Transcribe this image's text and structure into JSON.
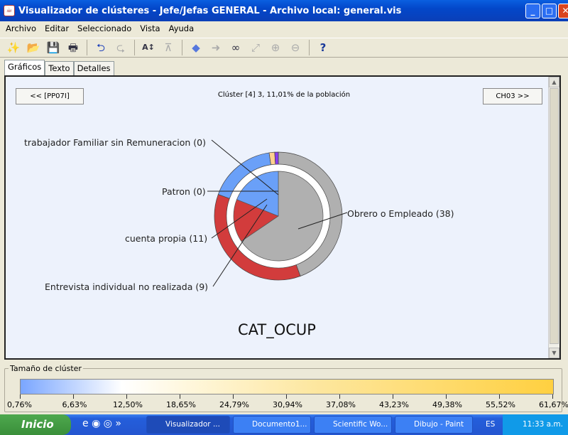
{
  "window": {
    "title": "Visualizador de clústeres - Jefe/Jefas GENERAL - Archivo local: general.vis"
  },
  "menu": [
    "Archivo",
    "Editar",
    "Seleccionado",
    "Vista",
    "Ayuda"
  ],
  "toolbar": [
    "new-icon",
    "open-icon",
    "save-icon",
    "print-icon",
    "redo-arrow-icon",
    "undo-arrow-icon",
    "sort-icon",
    "collapse-icon",
    "back-icon",
    "forward-icon",
    "binoculars-icon",
    "resize-icon",
    "zoom-in-icon",
    "zoom-out-icon",
    "help-icon"
  ],
  "tabs": [
    "Gráficos",
    "Texto",
    "Detalles"
  ],
  "panel": {
    "prev_label": "<< [PP07I]",
    "next_label": "CH03 >>",
    "cluster_info": "Clúster [4] 3, 11,01% de la población"
  },
  "chart_data": {
    "type": "pie",
    "title": "CAT_OCUP",
    "categories": [
      "Obrero o Empleado",
      "Entrevista individual no realizada",
      "cuenta propia",
      "Patron",
      "trabajador Familiar sin Remuneracion"
    ],
    "values": [
      38,
      9,
      11,
      0,
      0
    ],
    "labels": [
      "Obrero o Empleado (38)",
      "Entrevista individual no realizada (9)",
      "cuenta propia (11)",
      "Patron (0)",
      "trabajador Familiar sin Remuneracion (0)"
    ],
    "colors": [
      "#b0b0b0",
      "#d23c3c",
      "#6aa0f8",
      "#ffd090",
      "#8a3cf0"
    ],
    "outer_ring_population_percent": [
      44.4,
      36.1,
      17.2,
      1.4,
      0.9
    ]
  },
  "legend": {
    "title": "Tamaño de clúster",
    "ticks": [
      "0,76%",
      "6,63%",
      "12,50%",
      "18,65%",
      "24,79%",
      "30,94%",
      "37,08%",
      "43,23%",
      "49,38%",
      "55,52%",
      "61,67%"
    ]
  },
  "taskbar": {
    "start": "Inicio",
    "tasks": [
      "Visualizador ...",
      "Documento1...",
      "Scientific Wo...",
      "Dibujo - Paint"
    ],
    "lang": "ES",
    "clock": "11:33 a.m."
  }
}
